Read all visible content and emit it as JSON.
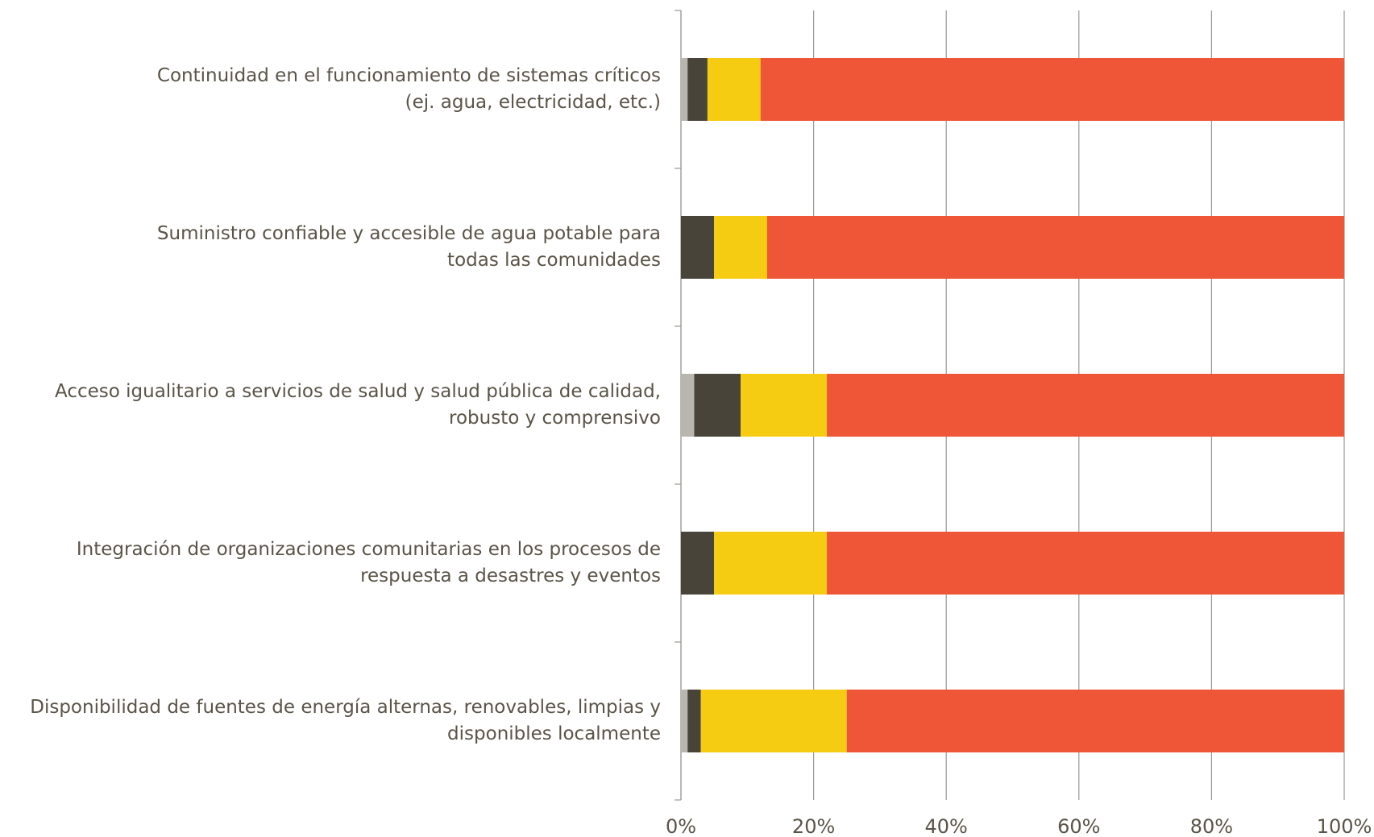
{
  "chart_data": {
    "type": "stacked-bar-horizontal",
    "categories": [
      [
        "Continuidad en el funcionamiento de sistemas críticos",
        "(ej. agua, electricidad, etc.)"
      ],
      [
        "Suministro confiable y accesible de agua potable para",
        "todas las comunidades"
      ],
      [
        "Acceso igualitario a servicios de salud y salud pública de calidad,",
        "robusto y comprensivo"
      ],
      [
        "Integración de organizaciones comunitarias en los procesos de",
        "respuesta a desastres y eventos"
      ],
      [
        "Disponibilidad de fuentes de energía alternas, renovables, limpias y",
        "disponibles localmente"
      ]
    ],
    "series": [
      {
        "color": "#b9b6b0",
        "values": [
          1,
          0,
          2,
          0,
          1
        ]
      },
      {
        "color": "#48443a",
        "values": [
          3,
          5,
          7,
          5,
          2
        ]
      },
      {
        "color": "#f5cc12",
        "values": [
          8,
          8,
          13,
          17,
          22
        ]
      },
      {
        "color": "#ef5537",
        "values": [
          88,
          87,
          78,
          78,
          75
        ]
      }
    ],
    "xlim": [
      0,
      100
    ],
    "xticks": [
      {
        "value": 0,
        "label": "0%"
      },
      {
        "value": 20,
        "label": "20%"
      },
      {
        "value": 40,
        "label": "40%"
      },
      {
        "value": 60,
        "label": "60%"
      },
      {
        "value": 80,
        "label": "80%"
      },
      {
        "value": 100,
        "label": "100%"
      }
    ],
    "grid": true
  }
}
